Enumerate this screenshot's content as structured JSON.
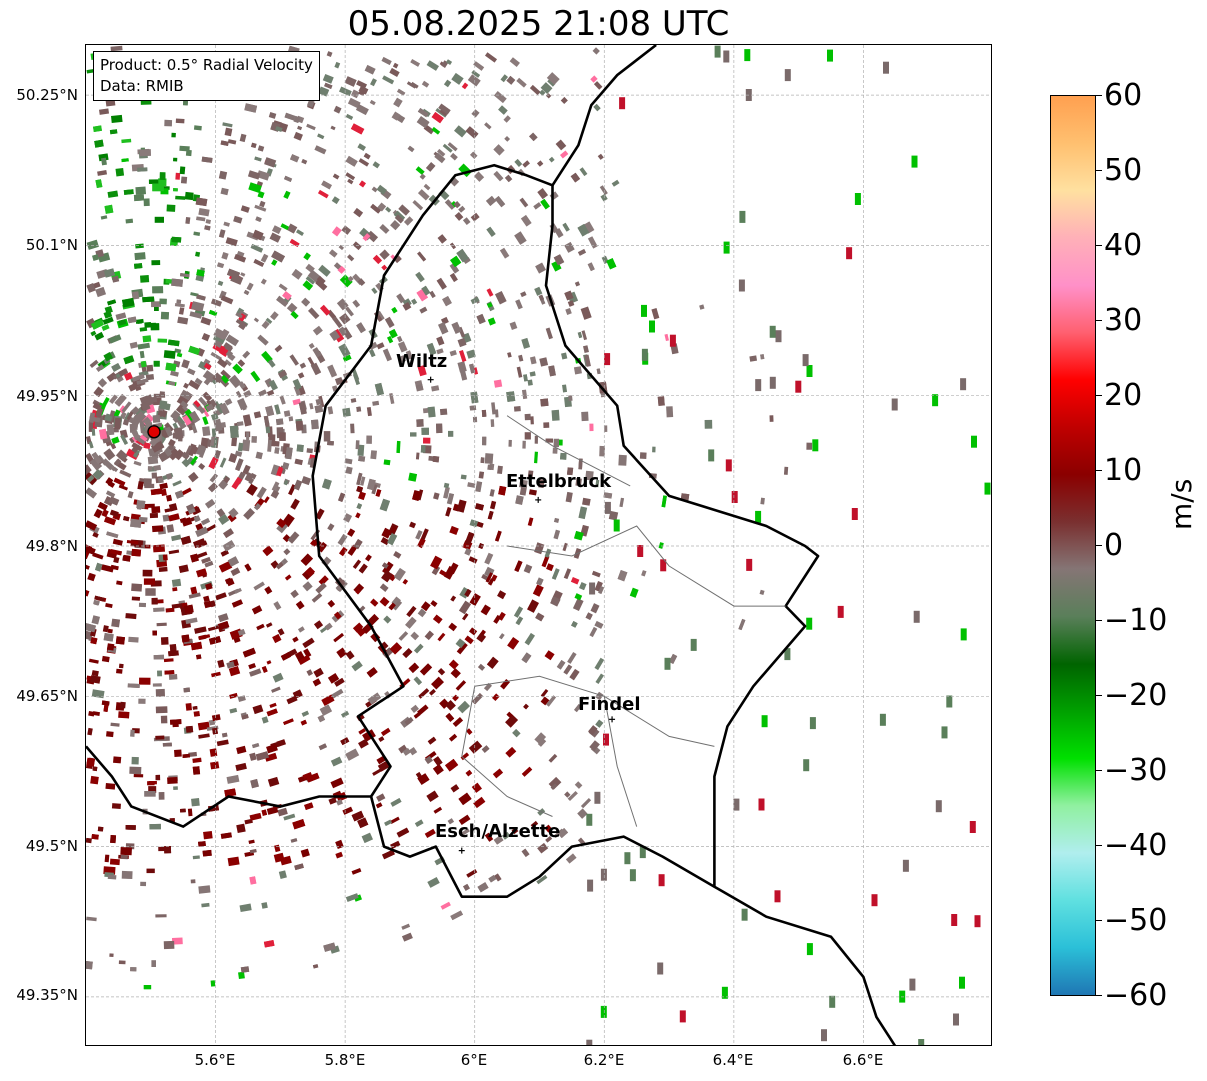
{
  "title": "05.08.2025 21:08 UTC",
  "info": {
    "product": "Product: 0.5° Radial Velocity",
    "data_source": "Data: RMIB"
  },
  "axes": {
    "lat_labels": [
      "50.25°N",
      "50.1°N",
      "49.95°N",
      "49.8°N",
      "49.65°N",
      "49.5°N",
      "49.35°N"
    ],
    "lon_labels": [
      "5.6°E",
      "5.8°E",
      "6°E",
      "6.2°E",
      "6.4°E",
      "6.6°E"
    ],
    "lat_range": [
      49.3,
      50.3
    ],
    "lon_range": [
      5.4,
      6.8
    ],
    "grid": true
  },
  "cities": [
    {
      "name": "Wiltz",
      "lat": 49.966,
      "lon": 5.932
    },
    {
      "name": "Ettelbruck",
      "lat": 49.846,
      "lon": 6.098
    },
    {
      "name": "Findel",
      "lat": 49.627,
      "lon": 6.212
    },
    {
      "name": "Esch/Alzette",
      "lat": 49.496,
      "lon": 5.98
    }
  ],
  "radar_site": {
    "lat": 49.914,
    "lon": 5.505
  },
  "colorbar": {
    "label": "m/s",
    "min": -60,
    "max": 60,
    "ticks": [
      "60",
      "50",
      "40",
      "30",
      "20",
      "10",
      "0",
      "−10",
      "−20",
      "−30",
      "−40",
      "−50",
      "−60"
    ],
    "colors": [
      "#1f77b4",
      "#2bc0d8",
      "#5fe0e0",
      "#b0eeee",
      "#90f0a0",
      "#00e000",
      "#00a000",
      "#006400",
      "#5a7f5a",
      "#857575",
      "#7a3030",
      "#8b0000",
      "#c00000",
      "#ff0000",
      "#ff6070",
      "#ff90c8",
      "#ffb0b8",
      "#ffe0a0",
      "#ffc070",
      "#ffa050"
    ]
  }
}
